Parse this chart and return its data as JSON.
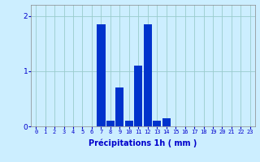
{
  "values": [
    0,
    0,
    0,
    0,
    0,
    0,
    0,
    1.85,
    0.1,
    0.7,
    0.1,
    1.1,
    1.85,
    0.1,
    0.15,
    0,
    0,
    0,
    0,
    0,
    0,
    0,
    0,
    0
  ],
  "bar_color": "#0033cc",
  "bg_color": "#cceeff",
  "grid_color": "#99cccc",
  "xlabel": "Précipitations 1h ( mm )",
  "xlabel_color": "#0000cc",
  "tick_color": "#0000cc",
  "tick_fontsize": 5.0,
  "ylabel_fontsize": 6.5,
  "xlabel_fontsize": 7.0,
  "ylim": [
    0,
    2.2
  ],
  "yticks": [
    0,
    1,
    2
  ],
  "num_hours": 24
}
